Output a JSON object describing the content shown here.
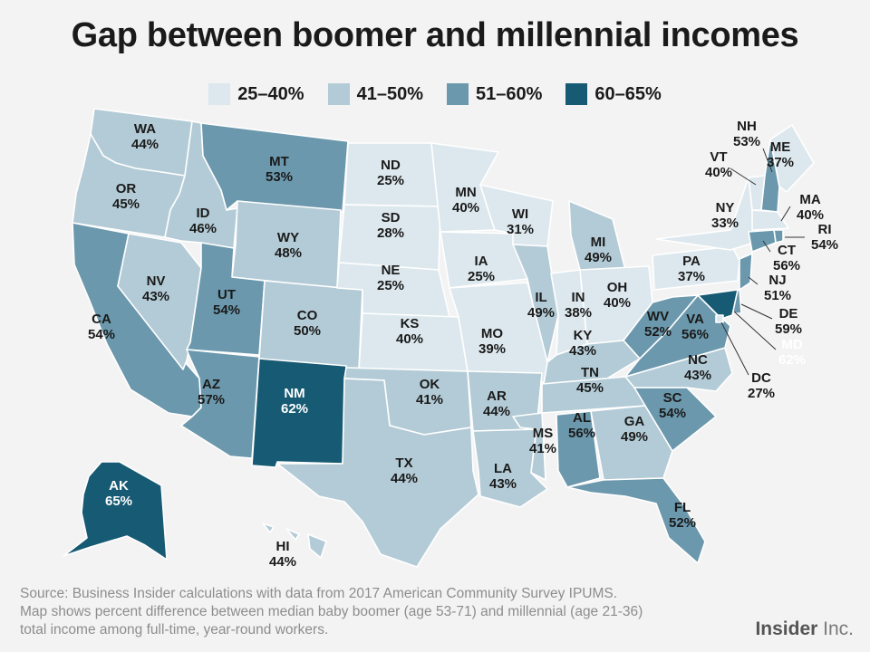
{
  "title": "Gap between boomer and millennial incomes",
  "legend": [
    {
      "label": "25–40%",
      "color": "#dde8ee"
    },
    {
      "label": "41–50%",
      "color": "#b3cbd6"
    },
    {
      "label": "51–60%",
      "color": "#6b98ac"
    },
    {
      "label": "60–65%",
      "color": "#175a73"
    }
  ],
  "states": [
    {
      "abbr": "WA",
      "value": "44%",
      "bin": 1
    },
    {
      "abbr": "OR",
      "value": "45%",
      "bin": 1
    },
    {
      "abbr": "CA",
      "value": "54%",
      "bin": 2
    },
    {
      "abbr": "NV",
      "value": "43%",
      "bin": 1
    },
    {
      "abbr": "ID",
      "value": "46%",
      "bin": 1
    },
    {
      "abbr": "MT",
      "value": "53%",
      "bin": 2
    },
    {
      "abbr": "WY",
      "value": "48%",
      "bin": 1
    },
    {
      "abbr": "UT",
      "value": "54%",
      "bin": 2
    },
    {
      "abbr": "AZ",
      "value": "57%",
      "bin": 2
    },
    {
      "abbr": "CO",
      "value": "50%",
      "bin": 1
    },
    {
      "abbr": "NM",
      "value": "62%",
      "bin": 3
    },
    {
      "abbr": "ND",
      "value": "25%",
      "bin": 0
    },
    {
      "abbr": "SD",
      "value": "28%",
      "bin": 0
    },
    {
      "abbr": "NE",
      "value": "25%",
      "bin": 0
    },
    {
      "abbr": "KS",
      "value": "40%",
      "bin": 0
    },
    {
      "abbr": "OK",
      "value": "41%",
      "bin": 1
    },
    {
      "abbr": "TX",
      "value": "44%",
      "bin": 1
    },
    {
      "abbr": "MN",
      "value": "40%",
      "bin": 0
    },
    {
      "abbr": "IA",
      "value": "25%",
      "bin": 0
    },
    {
      "abbr": "MO",
      "value": "39%",
      "bin": 0
    },
    {
      "abbr": "AR",
      "value": "44%",
      "bin": 1
    },
    {
      "abbr": "LA",
      "value": "43%",
      "bin": 1
    },
    {
      "abbr": "WI",
      "value": "31%",
      "bin": 0
    },
    {
      "abbr": "IL",
      "value": "49%",
      "bin": 1
    },
    {
      "abbr": "MI",
      "value": "49%",
      "bin": 1
    },
    {
      "abbr": "IN",
      "value": "38%",
      "bin": 0
    },
    {
      "abbr": "OH",
      "value": "40%",
      "bin": 0
    },
    {
      "abbr": "KY",
      "value": "43%",
      "bin": 1
    },
    {
      "abbr": "TN",
      "value": "45%",
      "bin": 1
    },
    {
      "abbr": "MS",
      "value": "41%",
      "bin": 1
    },
    {
      "abbr": "AL",
      "value": "56%",
      "bin": 2
    },
    {
      "abbr": "GA",
      "value": "49%",
      "bin": 1
    },
    {
      "abbr": "FL",
      "value": "52%",
      "bin": 2
    },
    {
      "abbr": "SC",
      "value": "54%",
      "bin": 2
    },
    {
      "abbr": "NC",
      "value": "43%",
      "bin": 1
    },
    {
      "abbr": "VA",
      "value": "56%",
      "bin": 2
    },
    {
      "abbr": "WV",
      "value": "52%",
      "bin": 2
    },
    {
      "abbr": "PA",
      "value": "37%",
      "bin": 0
    },
    {
      "abbr": "NY",
      "value": "33%",
      "bin": 0
    },
    {
      "abbr": "VT",
      "value": "40%",
      "bin": 0
    },
    {
      "abbr": "NH",
      "value": "53%",
      "bin": 2
    },
    {
      "abbr": "ME",
      "value": "37%",
      "bin": 0
    },
    {
      "abbr": "MA",
      "value": "40%",
      "bin": 0
    },
    {
      "abbr": "RI",
      "value": "54%",
      "bin": 2
    },
    {
      "abbr": "CT",
      "value": "56%",
      "bin": 2
    },
    {
      "abbr": "NJ",
      "value": "51%",
      "bin": 2
    },
    {
      "abbr": "DE",
      "value": "59%",
      "bin": 2
    },
    {
      "abbr": "MD",
      "value": "62%",
      "bin": 3
    },
    {
      "abbr": "DC",
      "value": "27%",
      "bin": 0
    },
    {
      "abbr": "AK",
      "value": "65%",
      "bin": 3
    },
    {
      "abbr": "HI",
      "value": "44%",
      "bin": 1
    }
  ],
  "source_lines": [
    "Source: Business Insider calculations with data from 2017 American Community Survey IPUMS.",
    "Map shows percent difference between median baby boomer (age 53-71) and millennial (age 21-36)",
    "total income among full-time, year-round workers."
  ],
  "brand": {
    "name": "Insider",
    "suffix": " Inc."
  }
}
